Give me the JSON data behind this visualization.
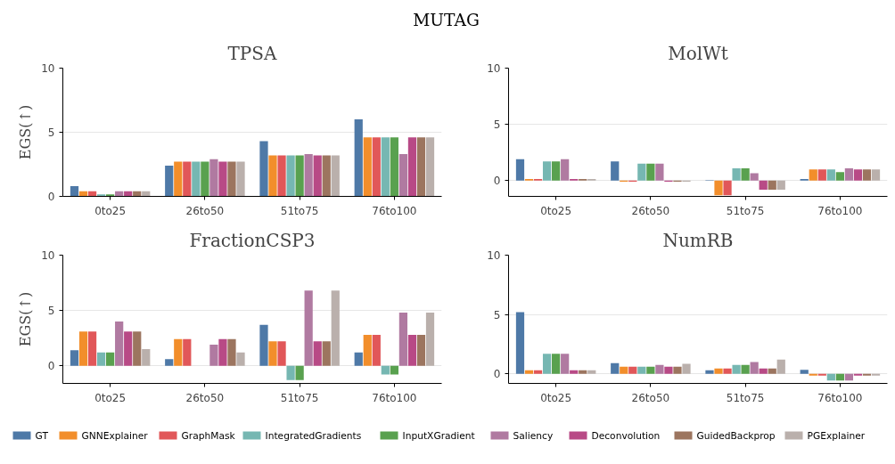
{
  "chart_data": [
    {
      "type": "bar",
      "title": "TPSA",
      "ylabel": "EGS(↑)",
      "annotations": [
        "MUTAG"
      ],
      "categories": [
        "0to25",
        "26to50",
        "51to75",
        "76to100"
      ],
      "ylim": [
        0,
        10
      ],
      "yticks": [
        0,
        5,
        10
      ],
      "grid": "y",
      "legend": "bottom",
      "series": [
        {
          "name": "GT",
          "color": "#4e79a7",
          "values": [
            0.8,
            2.4,
            4.3,
            6.0
          ]
        },
        {
          "name": "GNNExplainer",
          "color": "#f28e2b",
          "values": [
            0.4,
            2.7,
            3.2,
            4.6
          ]
        },
        {
          "name": "GraphMask",
          "color": "#e15759",
          "values": [
            0.4,
            2.7,
            3.2,
            4.6
          ]
        },
        {
          "name": "IntegratedGradients",
          "color": "#76b7b2",
          "values": [
            0.15,
            2.7,
            3.2,
            4.6
          ]
        },
        {
          "name": "InputXGradient",
          "color": "#59a14f",
          "values": [
            0.15,
            2.7,
            3.2,
            4.6
          ]
        },
        {
          "name": "Saliency",
          "color": "#b07aa1",
          "values": [
            0.4,
            2.9,
            3.3,
            3.3
          ]
        },
        {
          "name": "Deconvolution",
          "color": "#b84a86",
          "values": [
            0.4,
            2.7,
            3.2,
            4.6
          ]
        },
        {
          "name": "GuidedBackprop",
          "color": "#9c755f",
          "values": [
            0.4,
            2.7,
            3.2,
            4.6
          ]
        },
        {
          "name": "PGExplainer",
          "color": "#bab0ac",
          "values": [
            0.4,
            2.7,
            3.2,
            4.6
          ]
        }
      ]
    },
    {
      "type": "bar",
      "title": "MolWt",
      "categories": [
        "0to25",
        "26to50",
        "51to75",
        "76to100"
      ],
      "ylim": [
        -1.4,
        10
      ],
      "yticks": [
        0,
        5,
        10
      ],
      "grid": "y",
      "series": [
        {
          "color": "#4e79a7",
          "values": [
            1.9,
            1.7,
            0.05,
            0.15
          ]
        },
        {
          "color": "#f28e2b",
          "values": [
            0.15,
            -0.1,
            -1.3,
            1.0
          ]
        },
        {
          "color": "#e15759",
          "values": [
            0.15,
            -0.1,
            -1.3,
            1.0
          ]
        },
        {
          "color": "#76b7b2",
          "values": [
            1.7,
            1.5,
            1.1,
            1.0
          ]
        },
        {
          "color": "#59a14f",
          "values": [
            1.7,
            1.5,
            1.1,
            0.75
          ]
        },
        {
          "color": "#b07aa1",
          "values": [
            1.9,
            1.5,
            0.65,
            1.1
          ]
        },
        {
          "color": "#b84a86",
          "values": [
            0.15,
            -0.1,
            -0.8,
            1.0
          ]
        },
        {
          "color": "#9c755f",
          "values": [
            0.15,
            -0.1,
            -0.8,
            1.0
          ]
        },
        {
          "color": "#bab0ac",
          "values": [
            0.15,
            -0.1,
            -0.8,
            1.0
          ]
        }
      ]
    },
    {
      "type": "bar",
      "title": "FractionCSP3",
      "ylabel": "EGS(↑)",
      "categories": [
        "0to25",
        "26to50",
        "51to75",
        "76to100"
      ],
      "ylim": [
        -1.6,
        10
      ],
      "yticks": [
        0,
        5,
        10
      ],
      "grid": "y",
      "series": [
        {
          "color": "#4e79a7",
          "values": [
            1.4,
            0.6,
            3.7,
            1.2
          ]
        },
        {
          "color": "#f28e2b",
          "values": [
            3.1,
            2.4,
            2.2,
            2.8
          ]
        },
        {
          "color": "#e15759",
          "values": [
            3.1,
            2.4,
            2.2,
            2.8
          ]
        },
        {
          "color": "#76b7b2",
          "values": [
            1.2,
            0.0,
            -1.3,
            -0.8
          ]
        },
        {
          "color": "#59a14f",
          "values": [
            1.2,
            0.0,
            -1.3,
            -0.8
          ]
        },
        {
          "color": "#b07aa1",
          "values": [
            4.0,
            1.9,
            6.8,
            4.8
          ]
        },
        {
          "color": "#b84a86",
          "values": [
            3.1,
            2.4,
            2.2,
            2.8
          ]
        },
        {
          "color": "#9c755f",
          "values": [
            3.1,
            2.4,
            2.2,
            2.8
          ]
        },
        {
          "color": "#bab0ac",
          "values": [
            1.5,
            1.2,
            6.8,
            4.8
          ]
        }
      ]
    },
    {
      "type": "bar",
      "title": "NumRB",
      "categories": [
        "0to25",
        "26to50",
        "51to75",
        "76to100"
      ],
      "ylim": [
        -0.8,
        10
      ],
      "yticks": [
        0,
        5,
        10
      ],
      "grid": "y",
      "series": [
        {
          "color": "#4e79a7",
          "values": [
            5.2,
            0.9,
            0.3,
            0.35
          ]
        },
        {
          "color": "#f28e2b",
          "values": [
            0.3,
            0.6,
            0.45,
            -0.15
          ]
        },
        {
          "color": "#e15759",
          "values": [
            0.3,
            0.6,
            0.45,
            -0.15
          ]
        },
        {
          "color": "#76b7b2",
          "values": [
            1.7,
            0.6,
            0.75,
            -0.55
          ]
        },
        {
          "color": "#59a14f",
          "values": [
            1.7,
            0.6,
            0.75,
            -0.55
          ]
        },
        {
          "color": "#b07aa1",
          "values": [
            1.7,
            0.75,
            1.0,
            -0.55
          ]
        },
        {
          "color": "#b84a86",
          "values": [
            0.3,
            0.6,
            0.45,
            -0.15
          ]
        },
        {
          "color": "#9c755f",
          "values": [
            0.3,
            0.6,
            0.45,
            -0.15
          ]
        },
        {
          "color": "#bab0ac",
          "values": [
            0.3,
            0.85,
            1.2,
            -0.15
          ]
        }
      ]
    }
  ]
}
